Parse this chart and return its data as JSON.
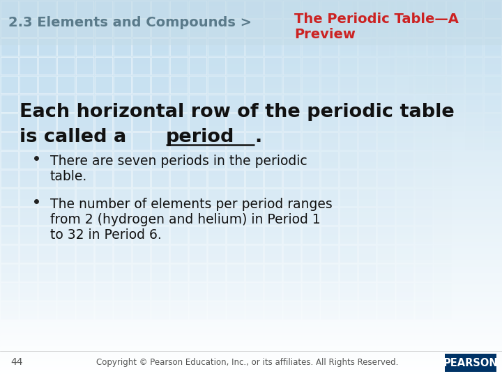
{
  "bg_gradient_top": "#c8dff0",
  "bg_gradient_bottom": "#ffffff",
  "header_bg": "#c5dce8",
  "header_text_left": "2.3 Elements and Compounds >",
  "header_text_left_color": "#5a7a8a",
  "header_text_right_line1": "The Periodic Table—A",
  "header_text_right_line2": "Preview",
  "header_text_right_color": "#cc2222",
  "main_heading_line1": "Each horizontal row of the periodic table",
  "main_heading_line2_before": "is called a ",
  "main_heading_line2_bold_underline": "period",
  "main_heading_line2_after": ".",
  "bullet1_line1": "There are seven periods in the periodic",
  "bullet1_line2": "table.",
  "bullet2_line1": "The number of elements per period ranges",
  "bullet2_line2": "from 2 (hydrogen and helium) in Period 1",
  "bullet2_line3": "to 32 in Period 6.",
  "footer_page": "44",
  "footer_center": "Copyright © Pearson Education, Inc., or its affiliates. All Rights Reserved.",
  "footer_color": "#555555",
  "grid_color": "#b8d8ee",
  "pearson_bg": "#003366",
  "pearson_text": "PEARSON",
  "pearson_text_color": "#ffffff"
}
